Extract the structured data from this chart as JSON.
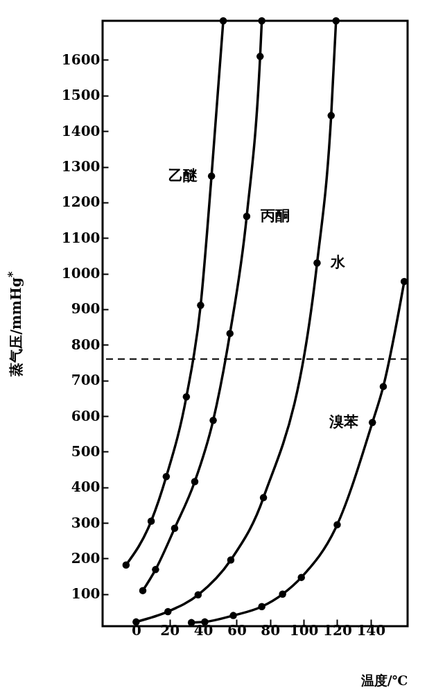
{
  "chart_data": {
    "type": "line",
    "xlabel": "温度/℃",
    "ylabel": "蒸气压/mmHg$^{*}$",
    "xlim": [
      -20,
      162
    ],
    "ylim": [
      10,
      1710
    ],
    "xticks": [
      0,
      20,
      40,
      60,
      80,
      100,
      120,
      140
    ],
    "yticks": [
      100,
      200,
      300,
      400,
      500,
      600,
      700,
      800,
      900,
      1000,
      1100,
      1200,
      1300,
      1400,
      1500,
      1600
    ],
    "grid": false,
    "legend": false,
    "marker": "circle",
    "line_style": "solid",
    "series": [
      {
        "name": "乙醚",
        "color": "#000000",
        "x": [
          -6,
          9,
          18,
          30,
          38.5,
          45,
          52
        ],
        "values": [
          182,
          305,
          430,
          654,
          911,
          1274,
          1710
        ]
      },
      {
        "name": "丙酮",
        "color": "#000000",
        "x": [
          4,
          11.6,
          23,
          35,
          46,
          56,
          66,
          74,
          75
        ],
        "values": [
          110,
          169,
          285,
          416,
          588,
          832,
          1161,
          1610,
          1710
        ]
      },
      {
        "name": "水",
        "color": "#000000",
        "x": [
          0,
          19,
          37,
          56.5,
          76,
          108,
          116.4,
          119.3
        ],
        "values": [
          22,
          51,
          98,
          196,
          371,
          1030,
          1444,
          1710
        ]
      },
      {
        "name": "溴苯",
        "color": "#000000",
        "x": [
          33,
          41,
          58,
          75,
          87.4,
          98.6,
          120,
          141,
          147.5,
          160
        ],
        "values": [
          20,
          22,
          40,
          65,
          100,
          147,
          295,
          582,
          683,
          978
        ]
      }
    ],
    "ref_lines": [
      {
        "axis": "y",
        "value": 760,
        "color": "#000000",
        "line_style": "dashed"
      }
    ]
  }
}
